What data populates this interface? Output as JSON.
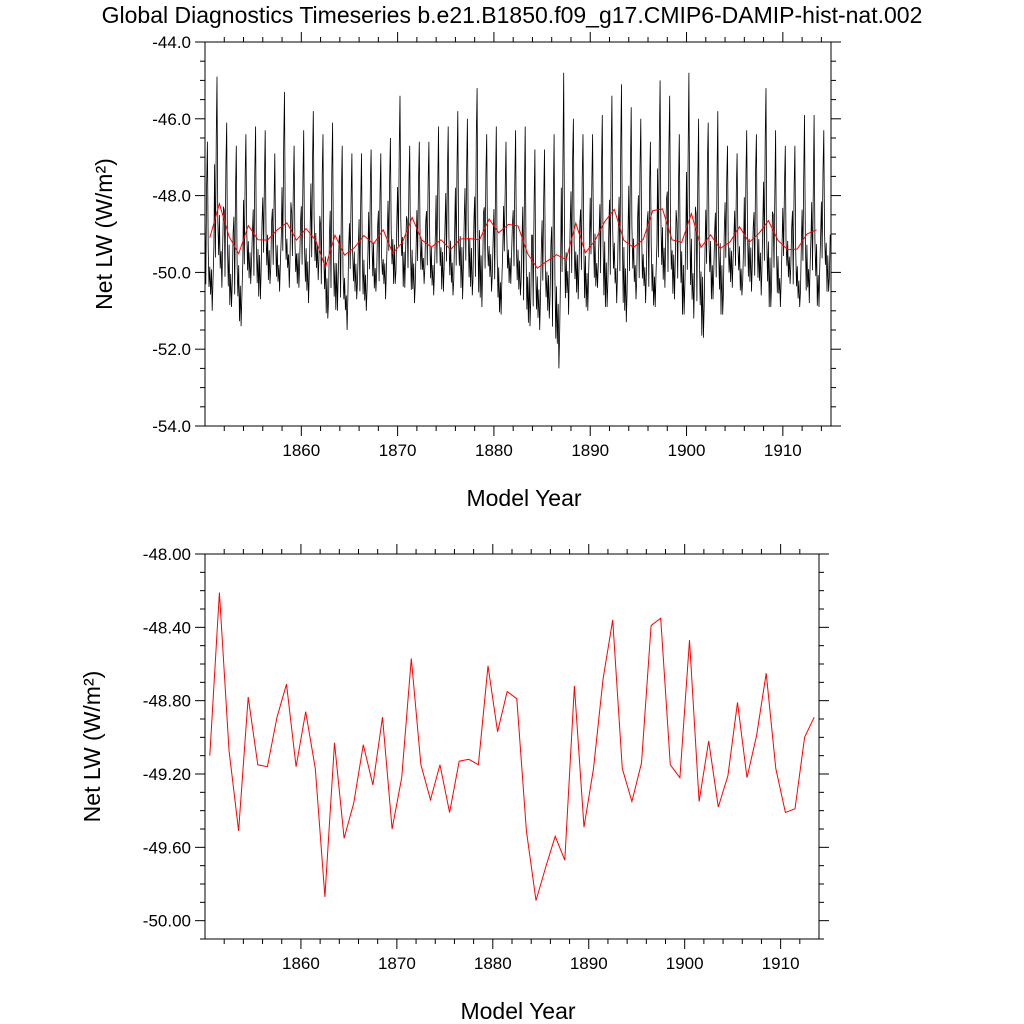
{
  "title": "Global Diagnostics Timeseries b.e21.B1850.f09_g17.CMIP6-DAMIP-hist-nat.002",
  "colors": {
    "monthly": "#000000",
    "annual": "#ff0000",
    "axis": "#000000"
  },
  "chart_data": [
    {
      "type": "line",
      "xlabel": "Model Year",
      "ylabel": "Net LW (W/m²)",
      "xlim": [
        1850,
        1915
      ],
      "ylim": [
        -54.0,
        -44.0
      ],
      "x_ticks": [
        "1860",
        "1870",
        "1880",
        "1890",
        "1900",
        "1910"
      ],
      "y_ticks": [
        "-54.0",
        "-52.0",
        "-50.0",
        "-48.0",
        "-46.0",
        "-44.0"
      ],
      "series": [
        {
          "color": "#000000",
          "peaks": [
            -46.6,
            -44.9,
            -46.1,
            -46.7,
            -46.4,
            -46.2,
            -46.3,
            -46.9,
            -45.3,
            -46.7,
            -46.3,
            -45.8,
            -46.4,
            -46.1,
            -46.7,
            -46.9,
            -46.9,
            -46.8,
            -46.9,
            -46.5,
            -45.4,
            -46.7,
            -46.6,
            -46.6,
            -46.2,
            -46.2,
            -45.8,
            -46.0,
            -45.2,
            -46.4,
            -46.2,
            -46.6,
            -46.3,
            -46.2,
            -46.8,
            -46.8,
            -46.4,
            -44.8,
            -46.0,
            -46.4,
            -46.4,
            -45.9,
            -45.4,
            -45.1,
            -45.7,
            -46.0,
            -46.6,
            -45.0,
            -45.4,
            -46.4,
            -44.8,
            -46.0,
            -46.1,
            -45.8,
            -46.7,
            -46.9,
            -46.3,
            -46.4,
            -45.2,
            -46.3,
            -46.7,
            -46.7,
            -45.9,
            -45.9,
            -46.3
          ],
          "troughs": [
            -51.0,
            -50.4,
            -50.9,
            -51.4,
            -50.3,
            -50.7,
            -50.3,
            -50.5,
            -50.4,
            -50.4,
            -50.8,
            -50.2,
            -51.2,
            -51.0,
            -51.5,
            -50.7,
            -51.0,
            -50.5,
            -50.7,
            -50.3,
            -50.4,
            -50.8,
            -50.3,
            -50.6,
            -50.5,
            -50.6,
            -50.7,
            -50.6,
            -50.9,
            -50.5,
            -51.1,
            -50.3,
            -50.6,
            -51.4,
            -51.5,
            -51.2,
            -52.5,
            -51.1,
            -50.7,
            -51.0,
            -50.4,
            -50.9,
            -50.8,
            -51.3,
            -50.7,
            -50.8,
            -50.9,
            -50.4,
            -50.7,
            -51.1,
            -51.2,
            -51.7,
            -50.7,
            -51.1,
            -50.4,
            -50.6,
            -50.5,
            -50.6,
            -50.9,
            -50.9,
            -50.3,
            -50.9,
            -50.8,
            -50.9,
            -50.5
          ]
        },
        {
          "color": "#ff0000",
          "x": [
            1850.5,
            1851.5,
            1852.5,
            1853.5,
            1854.5,
            1855.5,
            1856.5,
            1857.5,
            1858.5,
            1859.5,
            1860.5,
            1861.5,
            1862.5,
            1863.5,
            1864.5,
            1865.5,
            1866.5,
            1867.5,
            1868.5,
            1869.5,
            1870.5,
            1871.5,
            1872.5,
            1873.5,
            1874.5,
            1875.5,
            1876.5,
            1877.5,
            1878.5,
            1879.5,
            1880.5,
            1881.5,
            1882.5,
            1883.5,
            1884.5,
            1885.5,
            1886.5,
            1887.5,
            1888.5,
            1889.5,
            1890.5,
            1891.5,
            1892.5,
            1893.5,
            1894.5,
            1895.5,
            1896.5,
            1897.5,
            1898.5,
            1899.5,
            1900.5,
            1901.5,
            1902.5,
            1903.5,
            1904.5,
            1905.5,
            1906.5,
            1907.5,
            1908.5,
            1909.5,
            1910.5,
            1911.5,
            1912.5,
            1913.5
          ],
          "values": [
            -49.1,
            -48.21,
            -49.07,
            -49.51,
            -48.78,
            -49.15,
            -49.16,
            -48.89,
            -48.71,
            -49.16,
            -48.86,
            -49.17,
            -49.87,
            -49.03,
            -49.55,
            -49.36,
            -49.04,
            -49.26,
            -48.89,
            -49.5,
            -49.22,
            -48.57,
            -49.15,
            -49.34,
            -49.15,
            -49.41,
            -49.13,
            -49.12,
            -49.15,
            -48.61,
            -48.97,
            -48.75,
            -48.79,
            -49.51,
            -49.89,
            -49.71,
            -49.54,
            -49.67,
            -48.72,
            -49.49,
            -49.17,
            -48.68,
            -48.36,
            -49.17,
            -49.35,
            -49.14,
            -48.39,
            -48.35,
            -49.15,
            -49.22,
            -48.47,
            -49.35,
            -49.02,
            -49.38,
            -49.21,
            -48.81,
            -49.22,
            -48.99,
            -48.65,
            -49.17,
            -49.41,
            -49.39,
            -49.0,
            -48.89
          ]
        }
      ]
    },
    {
      "type": "line",
      "xlabel": "Model Year",
      "ylabel": "Net LW (W/m²)",
      "xlim": [
        1850,
        1914
      ],
      "ylim": [
        -50.1,
        -48.0
      ],
      "x_ticks": [
        "1860",
        "1870",
        "1880",
        "1890",
        "1900",
        "1910"
      ],
      "y_ticks": [
        "-50.00",
        "-49.60",
        "-49.20",
        "-48.80",
        "-48.40",
        "-48.00"
      ],
      "series": [
        {
          "color": "#ff0000",
          "x": [
            1850.5,
            1851.5,
            1852.5,
            1853.5,
            1854.5,
            1855.5,
            1856.5,
            1857.5,
            1858.5,
            1859.5,
            1860.5,
            1861.5,
            1862.5,
            1863.5,
            1864.5,
            1865.5,
            1866.5,
            1867.5,
            1868.5,
            1869.5,
            1870.5,
            1871.5,
            1872.5,
            1873.5,
            1874.5,
            1875.5,
            1876.5,
            1877.5,
            1878.5,
            1879.5,
            1880.5,
            1881.5,
            1882.5,
            1883.5,
            1884.5,
            1885.5,
            1886.5,
            1887.5,
            1888.5,
            1889.5,
            1890.5,
            1891.5,
            1892.5,
            1893.5,
            1894.5,
            1895.5,
            1896.5,
            1897.5,
            1898.5,
            1899.5,
            1900.5,
            1901.5,
            1902.5,
            1903.5,
            1904.5,
            1905.5,
            1906.5,
            1907.5,
            1908.5,
            1909.5,
            1910.5,
            1911.5,
            1912.5,
            1913.5
          ],
          "values": [
            -49.1,
            -48.21,
            -49.07,
            -49.51,
            -48.78,
            -49.15,
            -49.16,
            -48.89,
            -48.71,
            -49.16,
            -48.86,
            -49.17,
            -49.87,
            -49.03,
            -49.55,
            -49.36,
            -49.04,
            -49.26,
            -48.89,
            -49.5,
            -49.22,
            -48.57,
            -49.15,
            -49.34,
            -49.15,
            -49.41,
            -49.13,
            -49.12,
            -49.15,
            -48.61,
            -48.97,
            -48.75,
            -48.79,
            -49.51,
            -49.89,
            -49.71,
            -49.54,
            -49.67,
            -48.72,
            -49.49,
            -49.17,
            -48.68,
            -48.36,
            -49.17,
            -49.35,
            -49.14,
            -48.39,
            -48.35,
            -49.15,
            -49.22,
            -48.47,
            -49.35,
            -49.02,
            -49.38,
            -49.21,
            -48.81,
            -49.22,
            -48.99,
            -48.65,
            -49.17,
            -49.41,
            -49.39,
            -49.0,
            -48.89
          ]
        }
      ]
    }
  ]
}
